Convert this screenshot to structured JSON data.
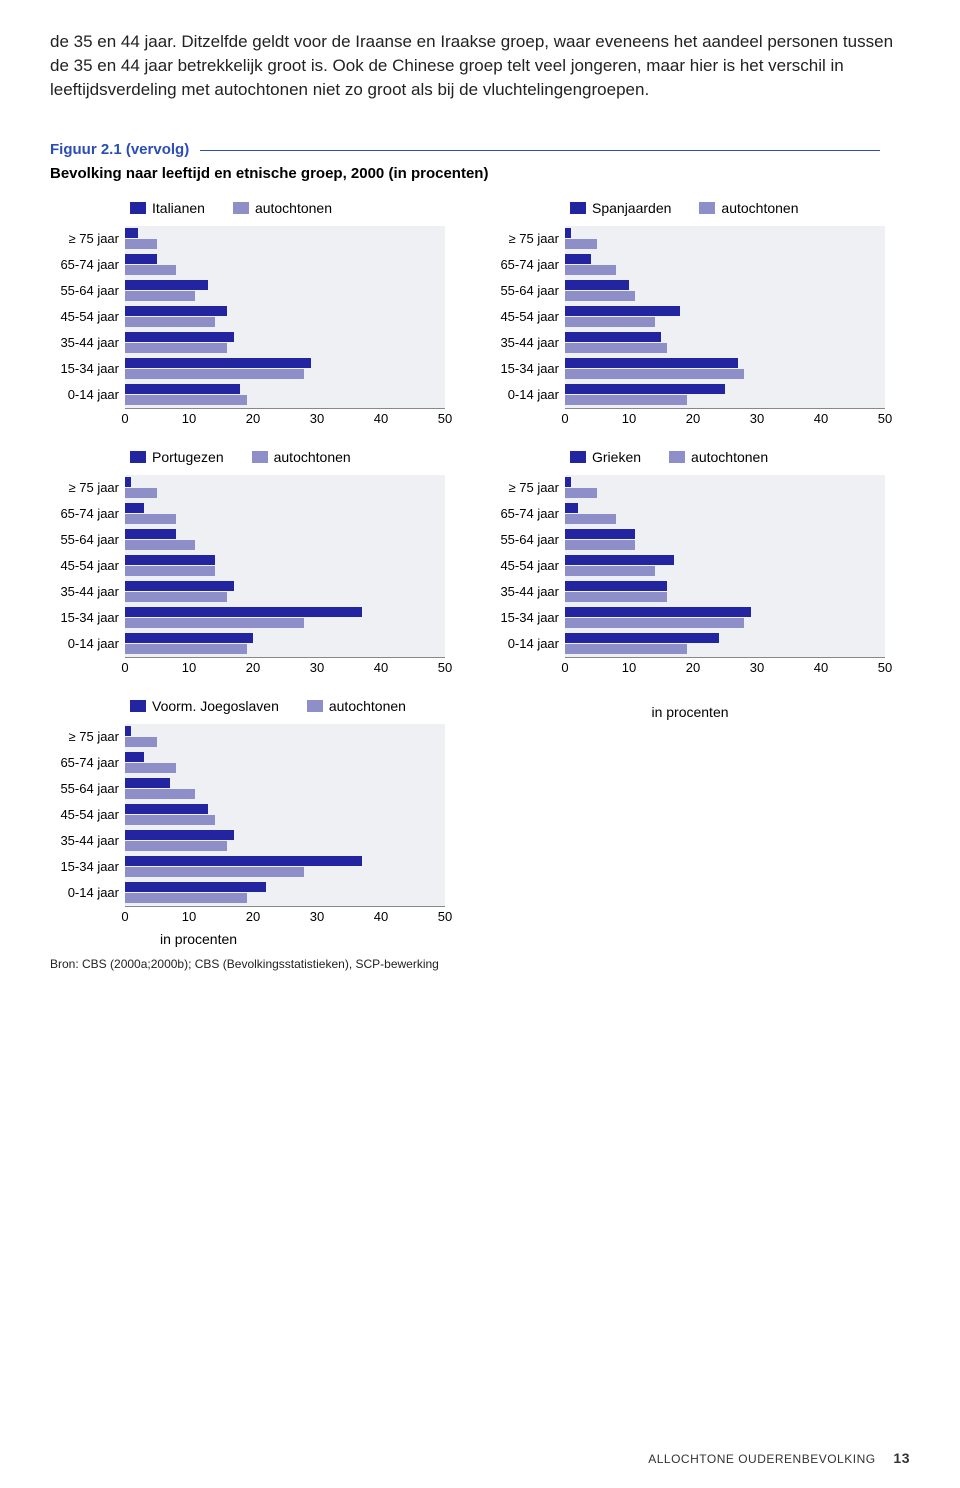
{
  "intro_text": "de 35 en 44 jaar. Ditzelfde geldt voor de Iraanse en Iraakse groep, waar eveneens het aandeel personen tussen de 35 en 44 jaar betrekkelijk groot is. Ook de Chinese groep telt veel jongeren, maar hier is het verschil in leeftijdsverdeling met autochtonen niet zo groot als bij de vluchtelingengroepen.",
  "figure_label": "Figuur 2.1 (vervolg)",
  "figure_title": "Bevolking naar leeftijd en etnische groep, 2000 (in procenten)",
  "colors": {
    "primary": "#23249f",
    "secondary": "#8e8fc9",
    "plot_bg": "#eef0f4",
    "text": "#222222"
  },
  "age_labels": [
    "≥ 75 jaar",
    "65-74 jaar",
    "55-64 jaar",
    "45-54 jaar",
    "35-44 jaar",
    "15-34 jaar",
    "0-14 jaar"
  ],
  "xticks": [
    0,
    10,
    20,
    30,
    40,
    50
  ],
  "xlim": 50,
  "axis_note": "in procenten",
  "source": "Bron: CBS (2000a;2000b); CBS (Bevolkingsstatistieken), SCP-bewerking",
  "footer": {
    "section": "ALLOCHTONE OUDERENBEVOLKING",
    "page": "13"
  },
  "autochtonen_values": [
    5,
    8,
    11,
    14,
    16,
    28,
    19
  ],
  "autochtonen_label": "autochtonen",
  "charts": [
    {
      "series_label": "Italianen",
      "values": [
        2,
        5,
        13,
        16,
        17,
        29,
        18
      ]
    },
    {
      "series_label": "Spanjaarden",
      "values": [
        1,
        4,
        10,
        18,
        15,
        27,
        25
      ]
    },
    {
      "series_label": "Portugezen",
      "values": [
        1,
        3,
        8,
        14,
        17,
        37,
        20
      ]
    },
    {
      "series_label": "Grieken",
      "values": [
        1,
        2,
        11,
        17,
        16,
        29,
        24
      ]
    },
    {
      "series_label": "Voorm. Joegoslaven",
      "values": [
        1,
        3,
        7,
        13,
        17,
        37,
        22
      ]
    }
  ]
}
